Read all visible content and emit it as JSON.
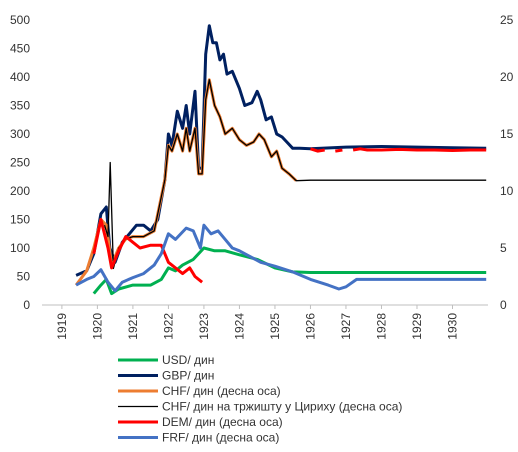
{
  "chart_data": {
    "type": "line",
    "xlim": [
      1918.44,
      1931.0
    ],
    "xticks": [
      1919,
      1920,
      1921,
      1922,
      1923,
      1924,
      1925,
      1926,
      1927,
      1928,
      1929,
      1930
    ],
    "ylim": [
      0,
      500
    ],
    "yticks": [
      0,
      50,
      100,
      150,
      200,
      250,
      300,
      350,
      400,
      450,
      500
    ],
    "y2lim": [
      0,
      25
    ],
    "y2ticks": [
      0,
      5,
      10,
      15,
      20,
      25
    ],
    "series": [
      {
        "name": "USD/ дин",
        "color": "#00b050",
        "x": [
          1919.9,
          1920.1,
          1920.25,
          1920.4,
          1920.6,
          1921.0,
          1921.5,
          1921.8,
          1922.0,
          1922.2,
          1922.4,
          1922.7,
          1923.0,
          1923.3,
          1923.6,
          1924.0,
          1924.5,
          1925.0,
          1925.5,
          1926.0,
          1930.95
        ],
        "values": [
          20,
          35,
          45,
          20,
          28,
          35,
          35,
          45,
          65,
          60,
          70,
          80,
          100,
          95,
          95,
          88,
          80,
          65,
          58,
          57,
          57
        ]
      },
      {
        "name": "GBP/ дин",
        "color": "#002060",
        "x": [
          1919.4,
          1919.7,
          1919.9,
          1920.1,
          1920.25,
          1920.35,
          1920.5,
          1920.7,
          1920.9,
          1921.1,
          1921.3,
          1921.5,
          1921.7,
          1921.9,
          1922.0,
          1922.1,
          1922.25,
          1922.4,
          1922.5,
          1922.6,
          1922.75,
          1922.85,
          1922.95,
          1923.05,
          1923.15,
          1923.25,
          1923.35,
          1923.45,
          1923.55,
          1923.65,
          1923.8,
          1924.0,
          1924.15,
          1924.35,
          1924.5,
          1924.6,
          1924.75,
          1924.9,
          1925.05,
          1925.2,
          1925.35,
          1925.5,
          1925.7,
          1926.0,
          1927.0,
          1928.0,
          1929.0,
          1930.0,
          1930.95
        ],
        "values": [
          52,
          60,
          90,
          160,
          172,
          100,
          75,
          110,
          125,
          140,
          140,
          130,
          150,
          220,
          300,
          280,
          340,
          310,
          350,
          300,
          375,
          240,
          240,
          440,
          490,
          460,
          460,
          430,
          440,
          405,
          410,
          380,
          350,
          355,
          375,
          360,
          325,
          330,
          300,
          295,
          285,
          275,
          275,
          274,
          277,
          278,
          277,
          276,
          275
        ]
      },
      {
        "name": "CHF/ дин (десна оса)",
        "color": "#ed7d31",
        "axis": "y2",
        "x": [
          1919.4,
          1919.7,
          1919.9,
          1920.1,
          1920.25,
          1920.4,
          1920.6,
          1920.8,
          1921.0,
          1921.3,
          1921.6,
          1921.9,
          1922.0,
          1922.1,
          1922.25,
          1922.4,
          1922.5,
          1922.6,
          1922.75,
          1922.85,
          1922.95,
          1923.05,
          1923.15,
          1923.3,
          1923.45,
          1923.6,
          1923.8,
          1924.0,
          1924.2,
          1924.4,
          1924.55,
          1924.7,
          1924.9,
          1925.05,
          1925.2,
          1925.4,
          1925.6
        ],
        "values": [
          1.75,
          3,
          5,
          7.5,
          7,
          3.5,
          5,
          5.8,
          6,
          6,
          6.5,
          11,
          14,
          13.5,
          15,
          13.5,
          15.5,
          13.5,
          15.5,
          11.5,
          11.5,
          18,
          19.75,
          17.5,
          16.5,
          15,
          15.5,
          14.5,
          14,
          14.3,
          15,
          14.5,
          13,
          13.5,
          12,
          11.5,
          10.9
        ]
      },
      {
        "name": "CHF/ дин на тржишту у Цириху (десна оса)",
        "color": "#000000",
        "axis": "y2",
        "x": [
          1920.2,
          1920.3,
          1920.36,
          1920.45,
          1920.6,
          1920.8,
          1921.0,
          1921.3,
          1921.6,
          1921.9,
          1922.0,
          1922.1,
          1922.25,
          1922.4,
          1922.5,
          1922.6,
          1922.75,
          1922.85,
          1922.95,
          1923.05,
          1923.15,
          1923.3,
          1923.45,
          1923.6,
          1923.8,
          1924.0,
          1924.2,
          1924.4,
          1924.55,
          1924.7,
          1924.9,
          1925.05,
          1925.2,
          1925.4,
          1925.6,
          1926.0,
          1928.0,
          1930.95
        ],
        "values": [
          7,
          6,
          12.5,
          3.2,
          5,
          5.8,
          6,
          6,
          6.5,
          11,
          14,
          13.5,
          15,
          13.5,
          15.5,
          13.5,
          15.5,
          11.5,
          11.5,
          18,
          19.75,
          17.5,
          16.5,
          15,
          15.5,
          14.5,
          14,
          14.3,
          15,
          14.5,
          13,
          13.5,
          12,
          11.5,
          10.9,
          10.95,
          10.95,
          10.95
        ]
      },
      {
        "name": "DEM/ дин (десна оса)",
        "color": "#ff0000",
        "axis": "y2",
        "x": [
          1919.9,
          1920.1,
          1920.3,
          1920.4,
          1920.6,
          1920.8,
          1921.0,
          1921.2,
          1921.5,
          1921.8,
          1922.0,
          1922.2,
          1922.4,
          1922.6,
          1922.75,
          1922.95,
          1925.9,
          1926.0,
          1926.2,
          1926.4,
          1926.5,
          1926.7,
          1926.9,
          1927.0,
          1927.2,
          1927.4,
          1927.6,
          1928.0,
          1928.5,
          1929.0,
          1929.5,
          1930.0,
          1930.5,
          1930.95
        ],
        "values": [
          4.5,
          7.5,
          5,
          3.25,
          4.75,
          6,
          5.5,
          5,
          5.25,
          5.25,
          3.75,
          3.25,
          2.75,
          3.25,
          2.5,
          2,
          null,
          13.7,
          13.5,
          13.6,
          null,
          13.5,
          13.6,
          null,
          13.6,
          13.7,
          13.6,
          13.6,
          13.65,
          13.6,
          13.6,
          13.55,
          13.6,
          13.6
        ]
      },
      {
        "name": "FRF/ дин (десна оса)",
        "color": "#4472c4",
        "axis": "y2",
        "x": [
          1919.4,
          1919.7,
          1919.9,
          1920.1,
          1920.3,
          1920.5,
          1920.7,
          1921.0,
          1921.3,
          1921.6,
          1921.8,
          1922.0,
          1922.2,
          1922.5,
          1922.7,
          1922.9,
          1923.0,
          1923.2,
          1923.4,
          1923.6,
          1923.8,
          1924.0,
          1924.3,
          1924.6,
          1925.0,
          1925.5,
          1926.0,
          1926.5,
          1926.8,
          1927.0,
          1927.3,
          1928.0,
          1930.95
        ],
        "values": [
          1.75,
          2.25,
          2.5,
          3.1,
          2,
          1.25,
          2,
          2.4,
          2.75,
          3.5,
          4.5,
          6.25,
          5.75,
          6.75,
          6.5,
          5,
          7,
          6.25,
          6.5,
          5.75,
          5,
          4.75,
          4.25,
          3.75,
          3.4,
          2.9,
          2.25,
          1.75,
          1.4,
          1.6,
          2.25,
          2.25,
          2.25
        ]
      }
    ]
  }
}
